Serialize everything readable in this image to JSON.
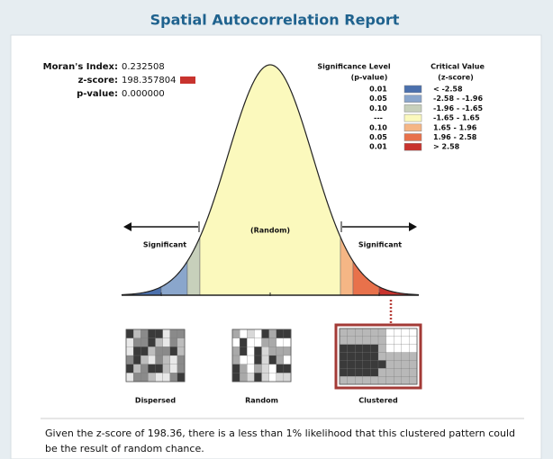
{
  "header": {
    "title": "Spatial Autocorrelation Report"
  },
  "stats": [
    {
      "label": "Moran's Index:",
      "value": "0.232508"
    },
    {
      "label": "z-score:",
      "value": "198.357804",
      "color": "#c8332e"
    },
    {
      "label": "p-value:",
      "value": "0.000000"
    }
  ],
  "legend": {
    "p_header": "Significance Level",
    "p_sub": "(p-value)",
    "z_header": "Critical Value",
    "z_sub": "(z-score)",
    "rows": [
      {
        "p": "0.01",
        "color": "#4b70ad",
        "z": "< -2.58"
      },
      {
        "p": "0.05",
        "color": "#8aa6cc",
        "z": "-2.58 - -1.96"
      },
      {
        "p": "0.10",
        "color": "#c7d0bb",
        "z": "-1.96 - -1.65"
      },
      {
        "p": "---",
        "color": "#fbf9bd",
        "z": "-1.65 - 1.65"
      },
      {
        "p": "0.10",
        "color": "#f5b685",
        "z": "1.65 - 1.96"
      },
      {
        "p": "0.05",
        "color": "#e8714b",
        "z": "1.96 - 2.58"
      },
      {
        "p": "0.01",
        "color": "#c8332e",
        "z": "> 2.58"
      }
    ]
  },
  "curve_labels": {
    "left": "Significant",
    "center": "(Random)",
    "right": "Significant"
  },
  "maps": [
    {
      "label": "Dispersed"
    },
    {
      "label": "Random"
    },
    {
      "label": "Clustered"
    }
  ],
  "footer": {
    "text_line1": "Given the z-score of 198.36, there is a less than 1% likelihood that this clustered pattern could",
    "text_line2": "be the result of random chance."
  }
}
